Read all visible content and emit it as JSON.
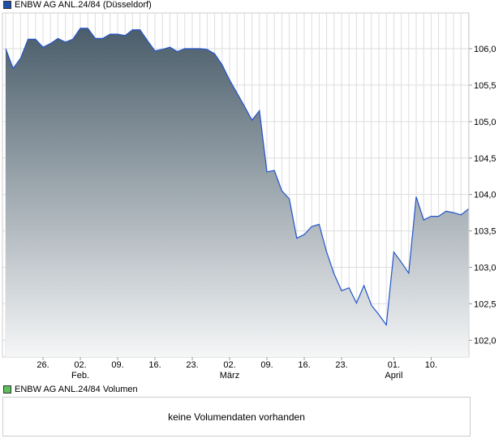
{
  "chart_data": {
    "type": "area",
    "legend": "ENBW AG  ANL.24/84 (Düsseldorf)",
    "legend_color": "#1f4fa8",
    "line_color": "#2255cc",
    "fill_top_color": "#4a5d6a",
    "fill_bottom_color": "#f5f6f7",
    "ylim": [
      101.77,
      106.49
    ],
    "y_ticks": [
      102.0,
      102.5,
      103.0,
      103.5,
      104.0,
      104.5,
      105.0,
      105.5,
      106.0
    ],
    "y_tick_labels": [
      "102,0",
      "102,5",
      "103,0",
      "103,5",
      "104,0",
      "104,5",
      "105,0",
      "105,5",
      "106,0"
    ],
    "grid": true,
    "x": [
      "19.01",
      "20.01",
      "21.01",
      "22.01",
      "23.01",
      "26.01",
      "27.01",
      "28.01",
      "29.01",
      "30.01",
      "02.02",
      "03.02",
      "04.02",
      "05.02",
      "06.02",
      "09.02",
      "10.02",
      "11.02",
      "12.02",
      "13.02",
      "16.02",
      "17.02",
      "18.02",
      "19.02",
      "20.02",
      "23.02",
      "24.02",
      "25.02",
      "26.02",
      "27.02",
      "02.03",
      "03.03",
      "04.03",
      "05.03",
      "06.03",
      "09.03",
      "10.03",
      "11.03",
      "12.03",
      "13.03",
      "16.03",
      "17.03",
      "18.03",
      "19.03",
      "20.03",
      "23.03",
      "24.03",
      "25.03",
      "26.03",
      "27.03",
      "30.03",
      "31.03",
      "01.04",
      "02.04",
      "07.04",
      "08.04",
      "09.04",
      "10.04",
      "13.04",
      "14.04",
      "15.04",
      "16.04",
      "17.04"
    ],
    "values": [
      106.0,
      105.73,
      105.87,
      106.13,
      106.13,
      106.02,
      106.07,
      106.14,
      106.09,
      106.13,
      106.28,
      106.28,
      106.14,
      106.14,
      106.2,
      106.2,
      106.18,
      106.26,
      106.26,
      106.11,
      105.97,
      105.99,
      106.02,
      105.96,
      106.0,
      106.0,
      106.0,
      105.99,
      105.93,
      105.78,
      105.57,
      105.39,
      105.21,
      105.02,
      105.15,
      104.31,
      104.33,
      104.05,
      103.94,
      103.4,
      103.45,
      103.56,
      103.59,
      103.21,
      102.91,
      102.68,
      102.72,
      102.51,
      102.75,
      102.48,
      102.35,
      102.21,
      103.21,
      103.07,
      102.92,
      103.97,
      103.65,
      103.7,
      103.7,
      103.77,
      103.75,
      103.72,
      103.8
    ],
    "x_ticks": [
      {
        "date": "26.01",
        "label": "26.",
        "month": ""
      },
      {
        "date": "02.02",
        "label": "02.",
        "month": "Feb."
      },
      {
        "date": "09.02",
        "label": "09.",
        "month": ""
      },
      {
        "date": "16.02",
        "label": "16.",
        "month": ""
      },
      {
        "date": "23.02",
        "label": "23.",
        "month": ""
      },
      {
        "date": "02.03",
        "label": "02.",
        "month": "März"
      },
      {
        "date": "09.03",
        "label": "09.",
        "month": ""
      },
      {
        "date": "16.03",
        "label": "16.",
        "month": ""
      },
      {
        "date": "23.03",
        "label": "23.",
        "month": ""
      },
      {
        "date": "01.04",
        "label": "01.",
        "month": "April"
      },
      {
        "date": "10.04",
        "label": "10.",
        "month": ""
      }
    ]
  },
  "volume": {
    "legend": "ENBW AG  ANL.24/84 Volumen",
    "legend_color": "#5cbf5c",
    "message": "keine Volumendaten vorhanden"
  }
}
